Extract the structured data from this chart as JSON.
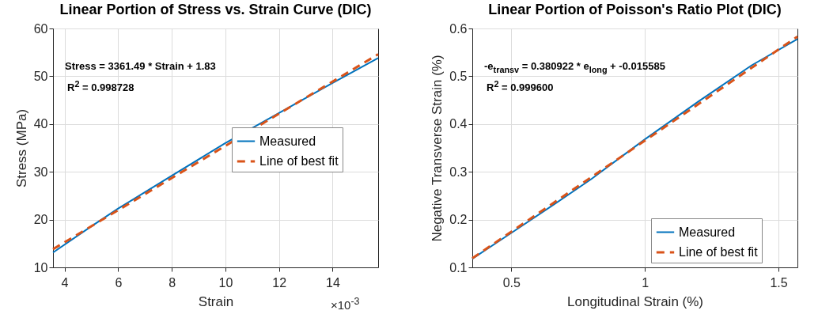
{
  "chart_data": [
    {
      "type": "line",
      "title": "Linear Portion of Stress vs. Strain Curve (DIC)",
      "xlabel": "Strain",
      "ylabel": "Stress (MPa)",
      "xlim": [
        3.57,
        15.7
      ],
      "ylim": [
        10,
        60
      ],
      "xticks": [
        4,
        6,
        8,
        10,
        12,
        14
      ],
      "yticks": [
        10,
        20,
        30,
        40,
        50,
        60
      ],
      "grid": true,
      "legend": "right",
      "annotations": [
        "Stress = 3361.49 * Strain + 1.83",
        "R$^{2}$ = 0.998728",
        "×10$^{-3}$"
      ],
      "series": [
        {
          "name": "Measured",
          "color": "#0072bd",
          "line_style": "solid",
          "x": [
            3.57,
            5,
            6,
            8,
            10,
            12,
            14,
            15.7
          ],
          "values": [
            13.1,
            18.6,
            22.3,
            29.2,
            36.0,
            42.3,
            48.6,
            53.8
          ]
        },
        {
          "name": "Line of best fit",
          "color": "#d95319",
          "line_style": "dashed",
          "x": [
            3.57,
            15.7
          ],
          "values": [
            13.8,
            54.6
          ]
        }
      ]
    },
    {
      "type": "line",
      "title": "Linear Portion of Poisson's Ratio Plot (DIC)",
      "xlabel": "Longitudinal Strain (%)",
      "ylabel": "Negative Transverse Strain (%)",
      "xlim": [
        0.354,
        1.571
      ],
      "ylim": [
        0.1,
        0.6
      ],
      "xticks": [
        0.5,
        1,
        1.5
      ],
      "yticks": [
        0.1,
        0.2,
        0.3,
        0.4,
        0.5,
        0.6
      ],
      "grid": true,
      "legend": "bottom right",
      "annotations": [
        "-e$_{transv}$ = 0.380922 * e$_{long}$ + -0.015585",
        "R$^{2}$ = 0.999600"
      ],
      "series": [
        {
          "name": "Measured",
          "color": "#0072bd",
          "line_style": "solid",
          "x": [
            0.354,
            0.5,
            0.65,
            0.8,
            1.0,
            1.2,
            1.4,
            1.571
          ],
          "values": [
            0.118,
            0.172,
            0.228,
            0.285,
            0.368,
            0.447,
            0.523,
            0.578
          ]
        },
        {
          "name": "Line of best fit",
          "color": "#d95319",
          "line_style": "dashed",
          "x": [
            0.354,
            1.571
          ],
          "values": [
            0.119,
            0.583
          ]
        }
      ]
    }
  ]
}
